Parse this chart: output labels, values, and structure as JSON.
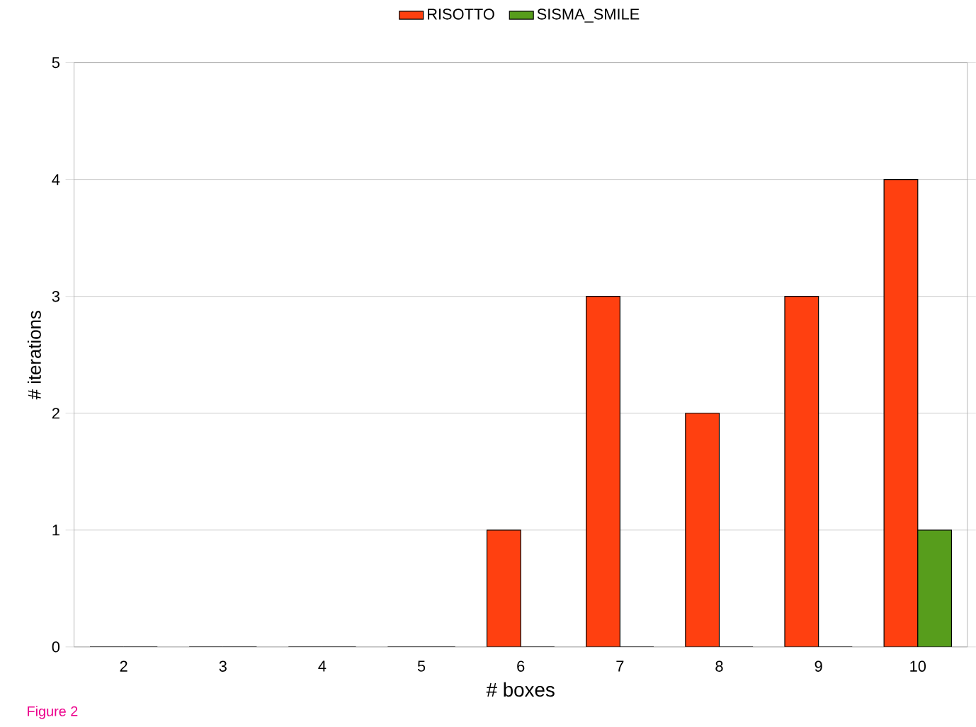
{
  "chart_data": {
    "type": "bar",
    "xlabel": "# boxes",
    "ylabel": "# iterations",
    "categories": [
      "2",
      "3",
      "4",
      "5",
      "6",
      "7",
      "8",
      "9",
      "10"
    ],
    "series": [
      {
        "name": "RISOTTO",
        "color": "#ff4010",
        "values": [
          0,
          0,
          0,
          0,
          1,
          3,
          2,
          3,
          4
        ]
      },
      {
        "name": "SISMA_SMILE",
        "color": "#579d1c",
        "values": [
          0,
          0,
          0,
          0,
          0,
          0,
          0,
          0,
          1
        ]
      }
    ],
    "ylim": [
      0,
      5
    ],
    "yticks": [
      0,
      1,
      2,
      3,
      4,
      5
    ],
    "grid": "y",
    "legend": "top",
    "annotations": [
      "Figure 2"
    ]
  }
}
